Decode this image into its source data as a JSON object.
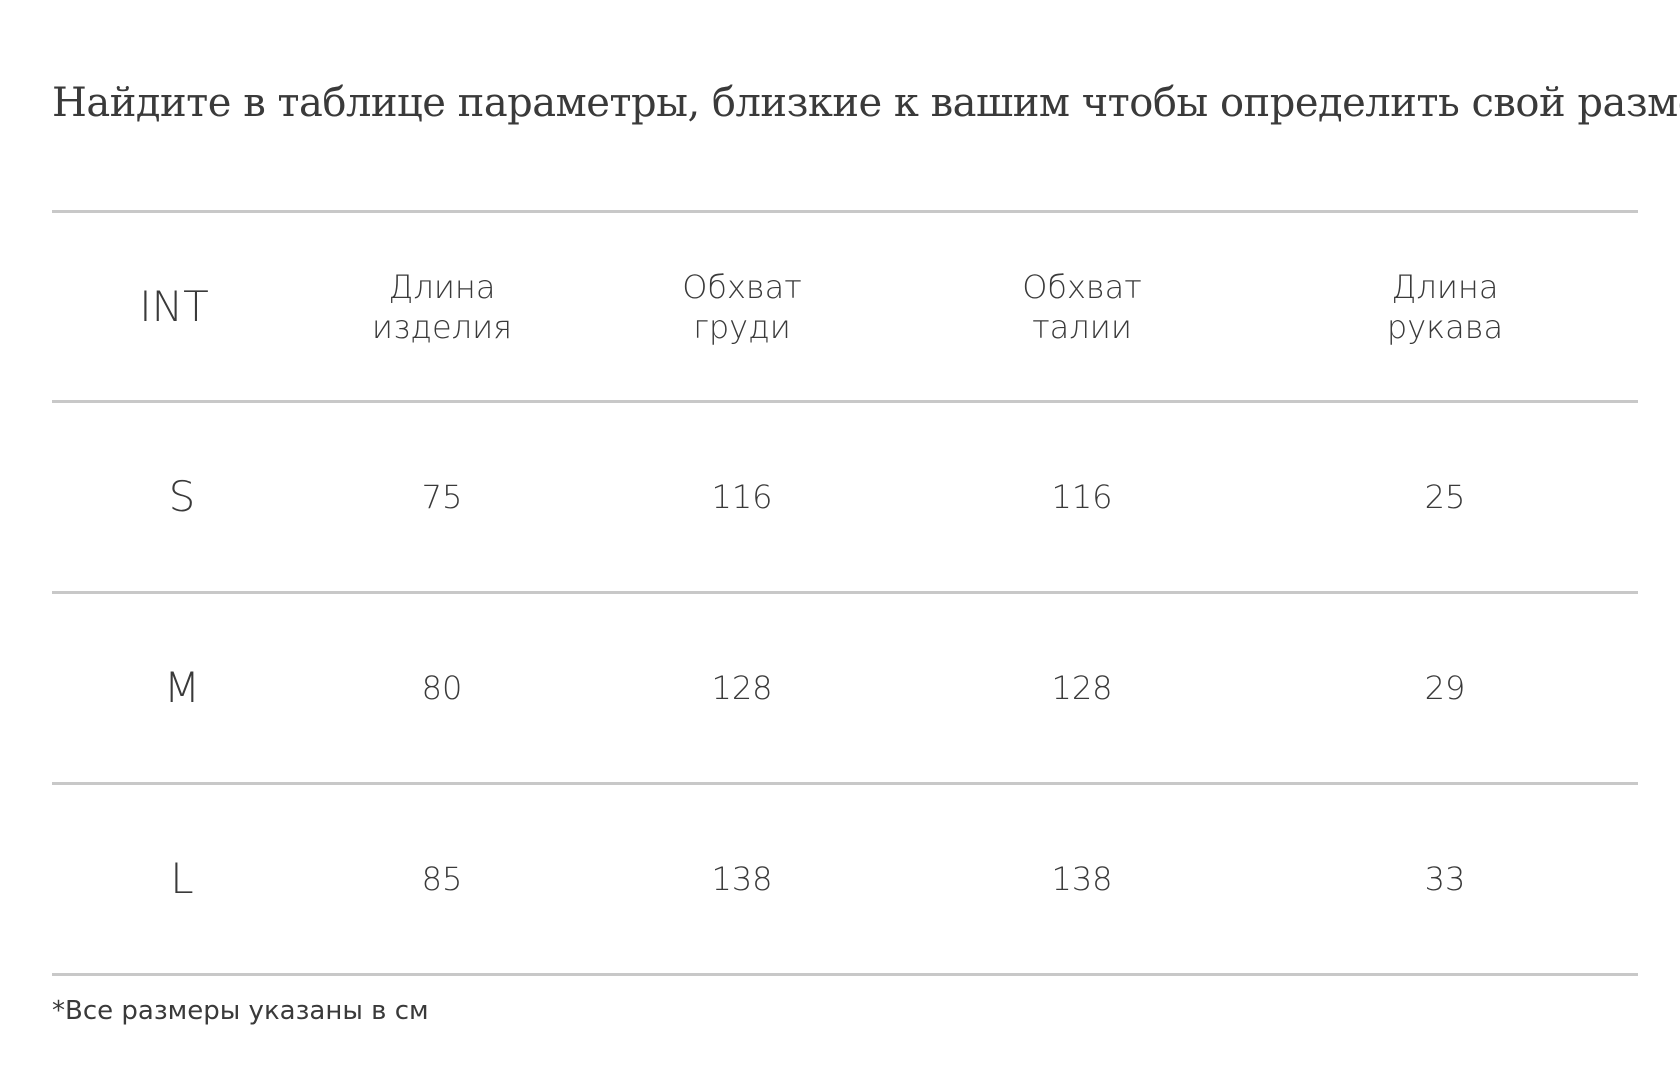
{
  "title": "Найдите в таблице параметры, близкие к вашим чтобы определить свой размер.",
  "table": {
    "headers": [
      {
        "line1": "INT",
        "line2": ""
      },
      {
        "line1": "Длина",
        "line2": "изделия"
      },
      {
        "line1": "Обхват",
        "line2": "груди"
      },
      {
        "line1": "Обхват",
        "line2": "талии"
      },
      {
        "line1": "Длина",
        "line2": "рукава"
      }
    ],
    "rows": [
      [
        "S",
        "75",
        "116",
        "116",
        "25"
      ],
      [
        "M",
        "80",
        "128",
        "128",
        "29"
      ],
      [
        "L",
        "85",
        "138",
        "138",
        "33"
      ]
    ]
  },
  "note": "*Все размеры указаны в см"
}
